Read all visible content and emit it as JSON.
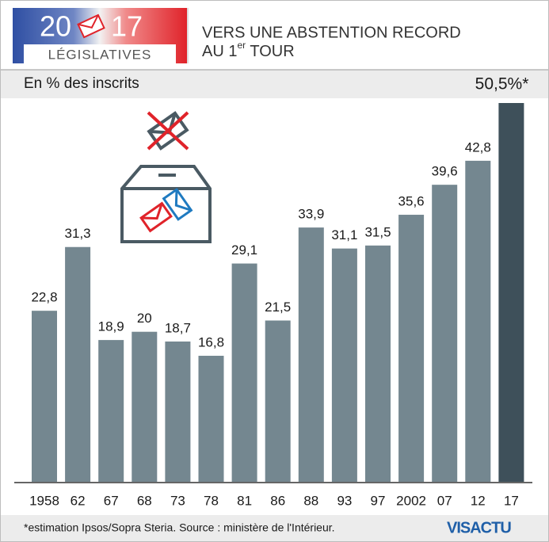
{
  "header": {
    "year_left": "20",
    "year_right": "17",
    "label": "LÉGISLATIVES",
    "title_line1": "VERS UNE ABSTENTION RECORD",
    "title_line2_start": "AU 1",
    "title_line2_sup": "er",
    "title_line2_end": " TOUR"
  },
  "chart_data": {
    "type": "bar",
    "subtitle": "En % des inscrits",
    "categories": [
      "1958",
      "62",
      "67",
      "68",
      "73",
      "78",
      "81",
      "86",
      "88",
      "93",
      "97",
      "2002",
      "07",
      "12",
      "17"
    ],
    "values": [
      22.8,
      31.3,
      18.9,
      20,
      18.7,
      16.8,
      29.1,
      21.5,
      33.9,
      31.1,
      31.5,
      35.6,
      39.6,
      42.8,
      50.5
    ],
    "value_labels": [
      "22,8",
      "31,3",
      "18,9",
      "20",
      "18,7",
      "16,8",
      "29,1",
      "21,5",
      "33,9",
      "31,1",
      "31,5",
      "35,6",
      "39,6",
      "42,8",
      "50,5%*"
    ],
    "colors": [
      "#748790",
      "#748790",
      "#748790",
      "#748790",
      "#748790",
      "#748790",
      "#748790",
      "#748790",
      "#748790",
      "#748790",
      "#748790",
      "#748790",
      "#748790",
      "#748790",
      "#3e505a"
    ]
  },
  "footer": {
    "note": "*estimation Ipsos/Sopra Steria. Source : ministère de l'Intérieur.",
    "logo": "VISACTU"
  }
}
